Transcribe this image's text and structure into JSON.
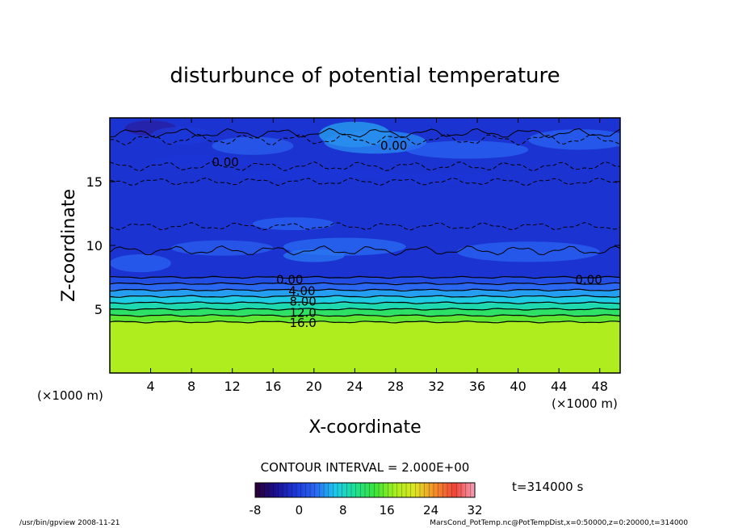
{
  "chart_data": {
    "type": "heatmap",
    "title": "disturbunce of potential temperature",
    "xlabel": "X-coordinate",
    "ylabel": "Z-coordinate",
    "x_unit": "(×1000 m)",
    "xlim": [
      0,
      50
    ],
    "ylim": [
      0,
      20
    ],
    "x_ticks": [
      4,
      8,
      12,
      16,
      20,
      24,
      28,
      32,
      36,
      40,
      44,
      48
    ],
    "y_ticks": [
      5,
      10,
      15
    ],
    "contour_interval_text": "CONTOUR INTERVAL = 2.000E+00",
    "contour_labels": [
      "0.00",
      "0.00",
      "0.00",
      "0.00",
      "4.00",
      "8.00",
      "12.0",
      "16.0"
    ],
    "colorbar": {
      "ticks": [
        -8,
        0,
        8,
        16,
        24,
        32
      ],
      "range": [
        -8,
        32
      ],
      "colors": [
        "#2a0033",
        "#1a0f8f",
        "#1b36d6",
        "#2a66f2",
        "#1ec8ee",
        "#1ee092",
        "#3ce23a",
        "#a6ef1e",
        "#dfe424",
        "#f48c2a",
        "#f04438",
        "#f5a0b8"
      ]
    },
    "time_text": "t=314000 s",
    "footer_left": "/usr/bin/gpview   2008-11-21",
    "footer_right": "MarsCond_PotTemp.nc@PotTempDist,x=0:50000,z=0:20000,t=314000",
    "layers": [
      {
        "z_from": 0,
        "z_to": 4,
        "value": 18
      },
      {
        "z_from": 4,
        "z_to": 4.5,
        "value": 15
      },
      {
        "z_from": 4.5,
        "z_to": 5,
        "value": 12
      },
      {
        "z_from": 5,
        "z_to": 5.5,
        "value": 9
      },
      {
        "z_from": 5.5,
        "z_to": 6,
        "value": 7
      },
      {
        "z_from": 6,
        "z_to": 6.5,
        "value": 5
      },
      {
        "z_from": 6.5,
        "z_to": 7,
        "value": 3
      },
      {
        "z_from": 7,
        "z_to": 7.5,
        "value": 1
      },
      {
        "z_from": 7.5,
        "z_to": 20,
        "value": -1
      }
    ]
  }
}
